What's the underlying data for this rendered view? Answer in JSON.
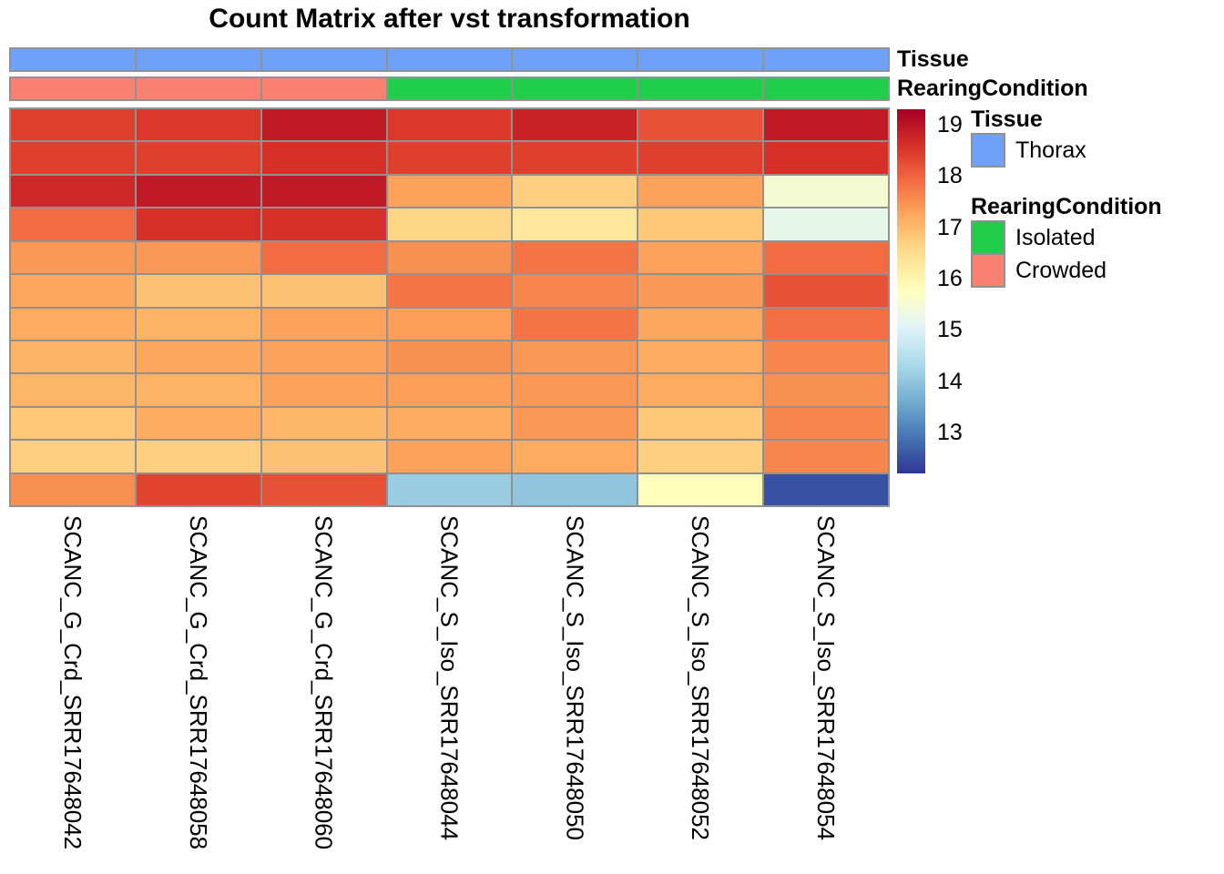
{
  "title": "Count Matrix after vst transformation",
  "annotation_bars": {
    "tissue_label": "Tissue",
    "rearing_label": "RearingCondition",
    "tissue_values": [
      "Thorax",
      "Thorax",
      "Thorax",
      "Thorax",
      "Thorax",
      "Thorax",
      "Thorax"
    ],
    "rearing_values": [
      "Crowded",
      "Crowded",
      "Crowded",
      "Isolated",
      "Isolated",
      "Isolated",
      "Isolated"
    ],
    "category_colors": {
      "Thorax": "#6FA1F8",
      "Isolated": "#20CE4C",
      "Crowded": "#FA8072"
    }
  },
  "legend": {
    "sections": [
      {
        "header": "Tissue",
        "items": [
          {
            "label": "Thorax",
            "color": "#6FA1F8"
          }
        ]
      },
      {
        "header": "RearingCondition",
        "items": [
          {
            "label": "Isolated",
            "color": "#20CE4C"
          },
          {
            "label": "Crowded",
            "color": "#FA8072"
          }
        ]
      }
    ]
  },
  "chart_data": {
    "type": "heatmap",
    "title": "Count Matrix after vst transformation",
    "columns": [
      "SCANC_G_Crd_SRR17648042",
      "SCANC_G_Crd_SRR17648058",
      "SCANC_G_Crd_SRR17648060",
      "SCANC_S_Iso_SRR17648044",
      "SCANC_S_Iso_SRR17648050",
      "SCANC_S_Iso_SRR17648052",
      "SCANC_S_Iso_SRR17648054"
    ],
    "n_rows": 12,
    "row_labels_shown": false,
    "values": [
      [
        18.4,
        18.5,
        18.9,
        18.5,
        18.8,
        18.2,
        18.9
      ],
      [
        18.4,
        18.4,
        18.6,
        18.4,
        18.4,
        18.4,
        18.6
      ],
      [
        18.7,
        18.9,
        18.9,
        17.3,
        16.7,
        17.3,
        15.5
      ],
      [
        17.9,
        18.6,
        18.6,
        16.6,
        16.3,
        16.8,
        15.2
      ],
      [
        17.4,
        17.4,
        17.9,
        17.5,
        17.8,
        17.3,
        17.9
      ],
      [
        17.25,
        16.9,
        16.9,
        17.8,
        17.6,
        17.4,
        18.2
      ],
      [
        17.2,
        17.1,
        17.3,
        17.35,
        17.8,
        17.25,
        17.85
      ],
      [
        17.1,
        17.25,
        17.3,
        17.5,
        17.4,
        17.2,
        17.6
      ],
      [
        17.05,
        17.1,
        17.3,
        17.35,
        17.4,
        17.2,
        17.5
      ],
      [
        16.8,
        17.2,
        17.05,
        17.2,
        17.4,
        16.8,
        17.6
      ],
      [
        16.7,
        16.7,
        16.9,
        17.3,
        17.2,
        16.7,
        17.6
      ],
      [
        17.5,
        18.35,
        18.2,
        14.1,
        14.0,
        15.8,
        12.5
      ]
    ],
    "color_scale": {
      "name": "RdYlBu reversed",
      "palette": [
        "#313695",
        "#4575B4",
        "#74ADD1",
        "#ABD9E9",
        "#E0F3F8",
        "#FFFFBF",
        "#FEE090",
        "#FDAE61",
        "#F46D43",
        "#D73027",
        "#A50026"
      ],
      "domain": [
        12.2,
        19.3
      ],
      "ticks": [
        19,
        18,
        17,
        16,
        15,
        14,
        13
      ]
    },
    "grid_line_color": "#919191",
    "legend_position": "right"
  }
}
